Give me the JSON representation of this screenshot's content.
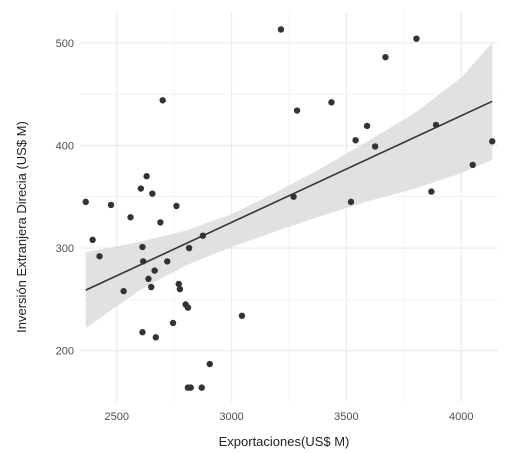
{
  "chart_data": {
    "type": "scatter",
    "title": "",
    "xlabel": "Exportaciones(US$ M)",
    "ylabel": "Inversión Extranjera Direcia (US$ M)",
    "xlim": [
      2340,
      4160
    ],
    "ylim": [
      150,
      530
    ],
    "x_ticks": [
      2500,
      3000,
      3500,
      4000
    ],
    "y_ticks": [
      200,
      300,
      400,
      500
    ],
    "x_tick_labels": [
      "2500",
      "3000",
      "3500",
      "4000"
    ],
    "y_tick_labels": [
      "200",
      "300",
      "400",
      "500"
    ],
    "grid": true,
    "legend": "none",
    "points": [
      {
        "x": 2365,
        "y": 345
      },
      {
        "x": 2395,
        "y": 308
      },
      {
        "x": 2425,
        "y": 292
      },
      {
        "x": 2475,
        "y": 342
      },
      {
        "x": 2530,
        "y": 258
      },
      {
        "x": 2560,
        "y": 330
      },
      {
        "x": 2605,
        "y": 358
      },
      {
        "x": 2612,
        "y": 301
      },
      {
        "x": 2615,
        "y": 287
      },
      {
        "x": 2612,
        "y": 218
      },
      {
        "x": 2630,
        "y": 370
      },
      {
        "x": 2638,
        "y": 270
      },
      {
        "x": 2650,
        "y": 262
      },
      {
        "x": 2655,
        "y": 353
      },
      {
        "x": 2665,
        "y": 278
      },
      {
        "x": 2670,
        "y": 213
      },
      {
        "x": 2690,
        "y": 325
      },
      {
        "x": 2700,
        "y": 444
      },
      {
        "x": 2720,
        "y": 287
      },
      {
        "x": 2745,
        "y": 227
      },
      {
        "x": 2760,
        "y": 341
      },
      {
        "x": 2770,
        "y": 265
      },
      {
        "x": 2775,
        "y": 260
      },
      {
        "x": 2800,
        "y": 245
      },
      {
        "x": 2810,
        "y": 242
      },
      {
        "x": 2815,
        "y": 300
      },
      {
        "x": 2810,
        "y": 164
      },
      {
        "x": 2822,
        "y": 164
      },
      {
        "x": 2875,
        "y": 312
      },
      {
        "x": 2870,
        "y": 164
      },
      {
        "x": 2905,
        "y": 187
      },
      {
        "x": 3045,
        "y": 234
      },
      {
        "x": 3215,
        "y": 513
      },
      {
        "x": 3270,
        "y": 350
      },
      {
        "x": 3285,
        "y": 434
      },
      {
        "x": 3435,
        "y": 442
      },
      {
        "x": 3520,
        "y": 345
      },
      {
        "x": 3540,
        "y": 405
      },
      {
        "x": 3590,
        "y": 419
      },
      {
        "x": 3625,
        "y": 399
      },
      {
        "x": 3670,
        "y": 486
      },
      {
        "x": 3805,
        "y": 504
      },
      {
        "x": 3870,
        "y": 355
      },
      {
        "x": 3890,
        "y": 420
      },
      {
        "x": 4050,
        "y": 381
      },
      {
        "x": 4135,
        "y": 404
      }
    ],
    "trend_line": {
      "x": [
        2365,
        4135
      ],
      "y": [
        259,
        443
      ]
    },
    "confidence_band": {
      "x": [
        2365,
        2600,
        2800,
        3000,
        3200,
        3400,
        3600,
        3800,
        4000,
        4135
      ],
      "upper": [
        296,
        306,
        317,
        333,
        355,
        379,
        405,
        432,
        466,
        500
      ],
      "lower": [
        222,
        259,
        283,
        301,
        317,
        332,
        346,
        358,
        373,
        386
      ]
    },
    "colors": {
      "point": "#333333",
      "line": "#333333",
      "band": "#dcdcdc",
      "grid": "#ebebeb"
    }
  }
}
